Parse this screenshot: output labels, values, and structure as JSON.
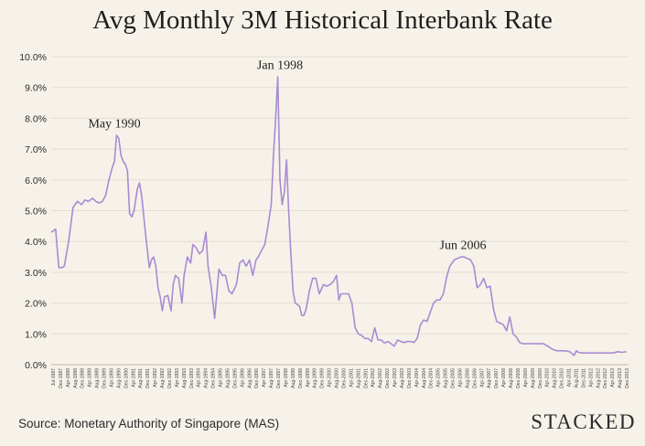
{
  "title": "Avg Monthly 3M Historical Interbank Rate",
  "source": "Source: Monetary Authority of Singapore (MAS)",
  "brand": "STACKED",
  "chart_data": {
    "type": "line",
    "title": "Avg Monthly 3M Historical Interbank Rate",
    "xlabel": "",
    "ylabel": "",
    "ylim": [
      0,
      10
    ],
    "grid": true,
    "y_tick_labels": [
      "0.0%",
      "1.0%",
      "2.0%",
      "3.0%",
      "4.0%",
      "5.0%",
      "6.0%",
      "7.0%",
      "8.0%",
      "9.0%",
      "10.0%"
    ],
    "x_tick_labels": [
      "Jul-1987",
      "Dec-1987",
      "Apr-1988",
      "Aug-1988",
      "Dec-1988",
      "Apr-1989",
      "Aug-1989",
      "Dec-1989",
      "Apr-1990",
      "Aug-1990",
      "Dec-1990",
      "Apr-1991",
      "Aug-1991",
      "Dec-1991",
      "Apr-1992",
      "Aug-1992",
      "Dec-1992",
      "Apr-1993",
      "Aug-1993",
      "Dec-1993",
      "Apr-1994",
      "Aug-1994",
      "Dec-1994",
      "Apr-1995",
      "Aug-1995",
      "Dec-1995",
      "Apr-1996",
      "Aug-1996",
      "Dec-1996",
      "Apr-1997",
      "Aug-1997",
      "Dec-1997",
      "Apr-1998",
      "Aug-1998",
      "Dec-1998",
      "Apr-1999",
      "Aug-1999",
      "Dec-1999",
      "Apr-2000",
      "Aug-2000",
      "Dec-2000",
      "Apr-2001",
      "Aug-2001",
      "Dec-2001",
      "Apr-2002",
      "Aug-2002",
      "Dec-2002",
      "Apr-2003",
      "Aug-2003",
      "Dec-2003",
      "Apr-2004",
      "Aug-2004",
      "Dec-2004",
      "Apr-2005",
      "Aug-2005",
      "Dec-2005",
      "Apr-2006",
      "Aug-2006",
      "Dec-2006",
      "Apr-2007",
      "Aug-2007",
      "Dec-2007",
      "Apr-2008",
      "Aug-2008",
      "Dec-2008",
      "Apr-2009",
      "Aug-2009",
      "Dec-2009",
      "Apr-2010",
      "Aug-2010",
      "Dec-2010",
      "Apr-2011",
      "Aug-2011",
      "Dec-2011",
      "Apr-2012",
      "Aug-2012",
      "Dec-2012",
      "Apr-2013",
      "Aug-2013",
      "Dec-2013"
    ],
    "series": [
      {
        "color": "#a98bd1",
        "x": [
          1987.5,
          1987.7,
          1987.85,
          1988.0,
          1988.1,
          1988.3,
          1988.5,
          1988.7,
          1988.9,
          1989.05,
          1989.2,
          1989.4,
          1989.55,
          1989.7,
          1989.85,
          1990.0,
          1990.15,
          1990.3,
          1990.4,
          1990.5,
          1990.6,
          1990.7,
          1990.8,
          1990.9,
          1991.0,
          1991.1,
          1991.2,
          1991.3,
          1991.45,
          1991.55,
          1991.65,
          1991.75,
          1991.85,
          1992.0,
          1992.1,
          1992.2,
          1992.3,
          1992.4,
          1992.5,
          1992.6,
          1992.7,
          1992.85,
          1993.0,
          1993.1,
          1993.2,
          1993.35,
          1993.5,
          1993.6,
          1993.75,
          1993.9,
          1994.0,
          1994.15,
          1994.3,
          1994.45,
          1994.6,
          1994.7,
          1994.85,
          1995.0,
          1995.1,
          1995.2,
          1995.35,
          1995.5,
          1995.65,
          1995.8,
          1996.0,
          1996.15,
          1996.3,
          1996.45,
          1996.6,
          1996.75,
          1996.9,
          1997.0,
          1997.15,
          1997.3,
          1997.45,
          1997.6,
          1997.7,
          1997.8,
          1997.9,
          1998.0,
          1998.1,
          1998.2,
          1998.3,
          1998.4,
          1998.5,
          1998.6,
          1998.7,
          1998.8,
          1998.9,
          1999.0,
          1999.1,
          1999.2,
          1999.35,
          1999.5,
          1999.65,
          1999.8,
          2000.0,
          2000.15,
          2000.3,
          2000.45,
          2000.6,
          2000.7,
          2000.8,
          2001.0,
          2001.15,
          2001.3,
          2001.45,
          2001.6,
          2001.75,
          2001.9,
          2002.05,
          2002.2,
          2002.35,
          2002.5,
          2002.65,
          2002.8,
          2002.95,
          2003.1,
          2003.25,
          2003.4,
          2003.55,
          2003.7,
          2003.85,
          2004.0,
          2004.15,
          2004.3,
          2004.45,
          2004.6,
          2004.75,
          2004.9,
          2005.05,
          2005.2,
          2005.35,
          2005.5,
          2005.65,
          2005.8,
          2006.0,
          2006.15,
          2006.3,
          2006.45,
          2006.6,
          2006.75,
          2006.9,
          2007.05,
          2007.2,
          2007.35,
          2007.5,
          2007.65,
          2007.8,
          2007.95,
          2008.1,
          2008.25,
          2008.4,
          2008.55,
          2008.7,
          2008.85,
          2009.0,
          2009.15,
          2009.3,
          2009.5,
          2009.7,
          2009.9,
          2010.1,
          2010.3,
          2010.5,
          2010.7,
          2010.9,
          2011.1,
          2011.3,
          2011.5,
          2011.6,
          2011.7,
          2011.9,
          2012.1,
          2012.3,
          2012.5,
          2012.7,
          2012.9,
          2013.1,
          2013.3,
          2013.5,
          2013.7,
          2013.9
        ],
        "y": [
          4.3,
          4.4,
          3.15,
          3.15,
          3.2,
          4.0,
          5.1,
          5.3,
          5.2,
          5.35,
          5.3,
          5.4,
          5.3,
          5.25,
          5.3,
          5.5,
          6.0,
          6.4,
          6.6,
          7.45,
          7.35,
          6.8,
          6.6,
          6.5,
          6.3,
          4.9,
          4.8,
          5.0,
          5.7,
          5.9,
          5.5,
          4.8,
          4.1,
          3.15,
          3.4,
          3.5,
          3.2,
          2.5,
          2.2,
          1.75,
          2.2,
          2.25,
          1.75,
          2.6,
          2.9,
          2.8,
          2.0,
          2.9,
          3.5,
          3.3,
          3.9,
          3.8,
          3.6,
          3.7,
          4.3,
          3.2,
          2.5,
          1.5,
          2.3,
          3.1,
          2.9,
          2.9,
          2.4,
          2.3,
          2.6,
          3.3,
          3.4,
          3.2,
          3.4,
          2.9,
          3.4,
          3.5,
          3.7,
          3.9,
          4.5,
          5.2,
          6.8,
          8.0,
          9.35,
          6.0,
          5.2,
          5.6,
          6.65,
          5.0,
          3.6,
          2.4,
          2.0,
          1.95,
          1.9,
          1.6,
          1.6,
          1.8,
          2.4,
          2.8,
          2.8,
          2.3,
          2.6,
          2.55,
          2.6,
          2.7,
          2.9,
          2.1,
          2.3,
          2.3,
          2.3,
          2.0,
          1.2,
          1.0,
          0.95,
          0.85,
          0.85,
          0.75,
          1.2,
          0.8,
          0.8,
          0.7,
          0.75,
          0.68,
          0.6,
          0.8,
          0.75,
          0.72,
          0.75,
          0.75,
          0.72,
          0.85,
          1.3,
          1.45,
          1.4,
          1.7,
          2.0,
          2.1,
          2.1,
          2.3,
          2.85,
          3.2,
          3.4,
          3.45,
          3.5,
          3.5,
          3.45,
          3.4,
          3.2,
          2.5,
          2.6,
          2.8,
          2.5,
          2.55,
          1.8,
          1.4,
          1.35,
          1.3,
          1.1,
          1.55,
          1.0,
          0.9,
          0.72,
          0.68,
          0.68,
          0.68,
          0.68,
          0.68,
          0.68,
          0.6,
          0.5,
          0.45,
          0.45,
          0.45,
          0.42,
          0.3,
          0.45,
          0.4,
          0.38,
          0.38,
          0.38,
          0.38,
          0.38,
          0.38,
          0.38,
          0.38,
          0.42,
          0.4,
          0.42
        ]
      }
    ],
    "annotations": [
      {
        "text": "May 1990",
        "x": 1990.4,
        "y": 7.7
      },
      {
        "text": "Jan 1998",
        "x": 1998.0,
        "y": 9.6
      },
      {
        "text": "Jun 2006",
        "x": 2006.4,
        "y": 3.75
      }
    ]
  }
}
